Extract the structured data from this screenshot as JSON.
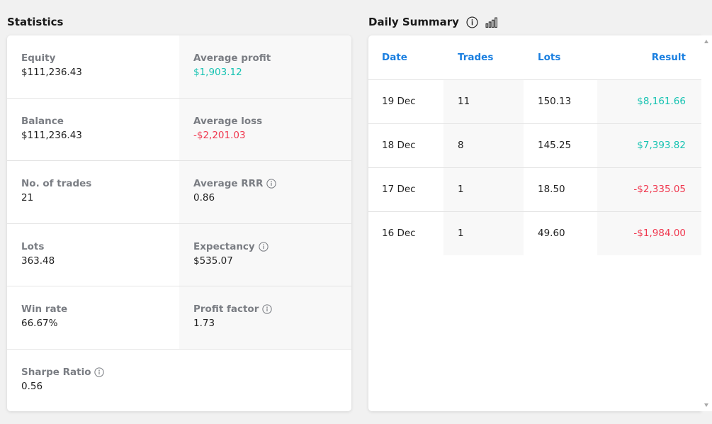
{
  "statistics": {
    "title": "Statistics",
    "rows": [
      [
        {
          "label": "Equity",
          "value": "$111,236.43"
        },
        {
          "label": "Average profit",
          "value": "$1,903.12"
        }
      ],
      [
        {
          "label": "Balance",
          "value": "$111,236.43"
        },
        {
          "label": "Average loss",
          "value": "-$2,201.03"
        }
      ],
      [
        {
          "label": "No. of trades",
          "value": "21"
        },
        {
          "label": "Average RRR",
          "value": "0.86"
        }
      ],
      [
        {
          "label": "Lots",
          "value": "363.48"
        },
        {
          "label": "Expectancy",
          "value": "$535.07"
        }
      ],
      [
        {
          "label": "Win rate",
          "value": "66.67%"
        },
        {
          "label": "Profit factor",
          "value": "1.73"
        }
      ],
      [
        {
          "label": "Sharpe Ratio",
          "value": "0.56"
        }
      ]
    ]
  },
  "daily_summary": {
    "title": "Daily Summary",
    "columns": {
      "date": "Date",
      "trades": "Trades",
      "lots": "Lots",
      "result": "Result"
    },
    "rows": [
      {
        "date": "19 Dec",
        "trades": "11",
        "lots": "150.13",
        "result": "$8,161.66"
      },
      {
        "date": "18 Dec",
        "trades": "8",
        "lots": "145.25",
        "result": "$7,393.82"
      },
      {
        "date": "17 Dec",
        "trades": "1",
        "lots": "18.50",
        "result": "-$2,335.05"
      },
      {
        "date": "16 Dec",
        "trades": "1",
        "lots": "49.60",
        "result": "-$1,984.00"
      }
    ]
  },
  "colors": {
    "positive": "#17c3b2",
    "negative": "#f0384f",
    "accent": "#1a7fe0",
    "label": "#7a7d83"
  },
  "icons": {
    "info": "info-circle-icon",
    "chart": "bar-chart-icon"
  }
}
